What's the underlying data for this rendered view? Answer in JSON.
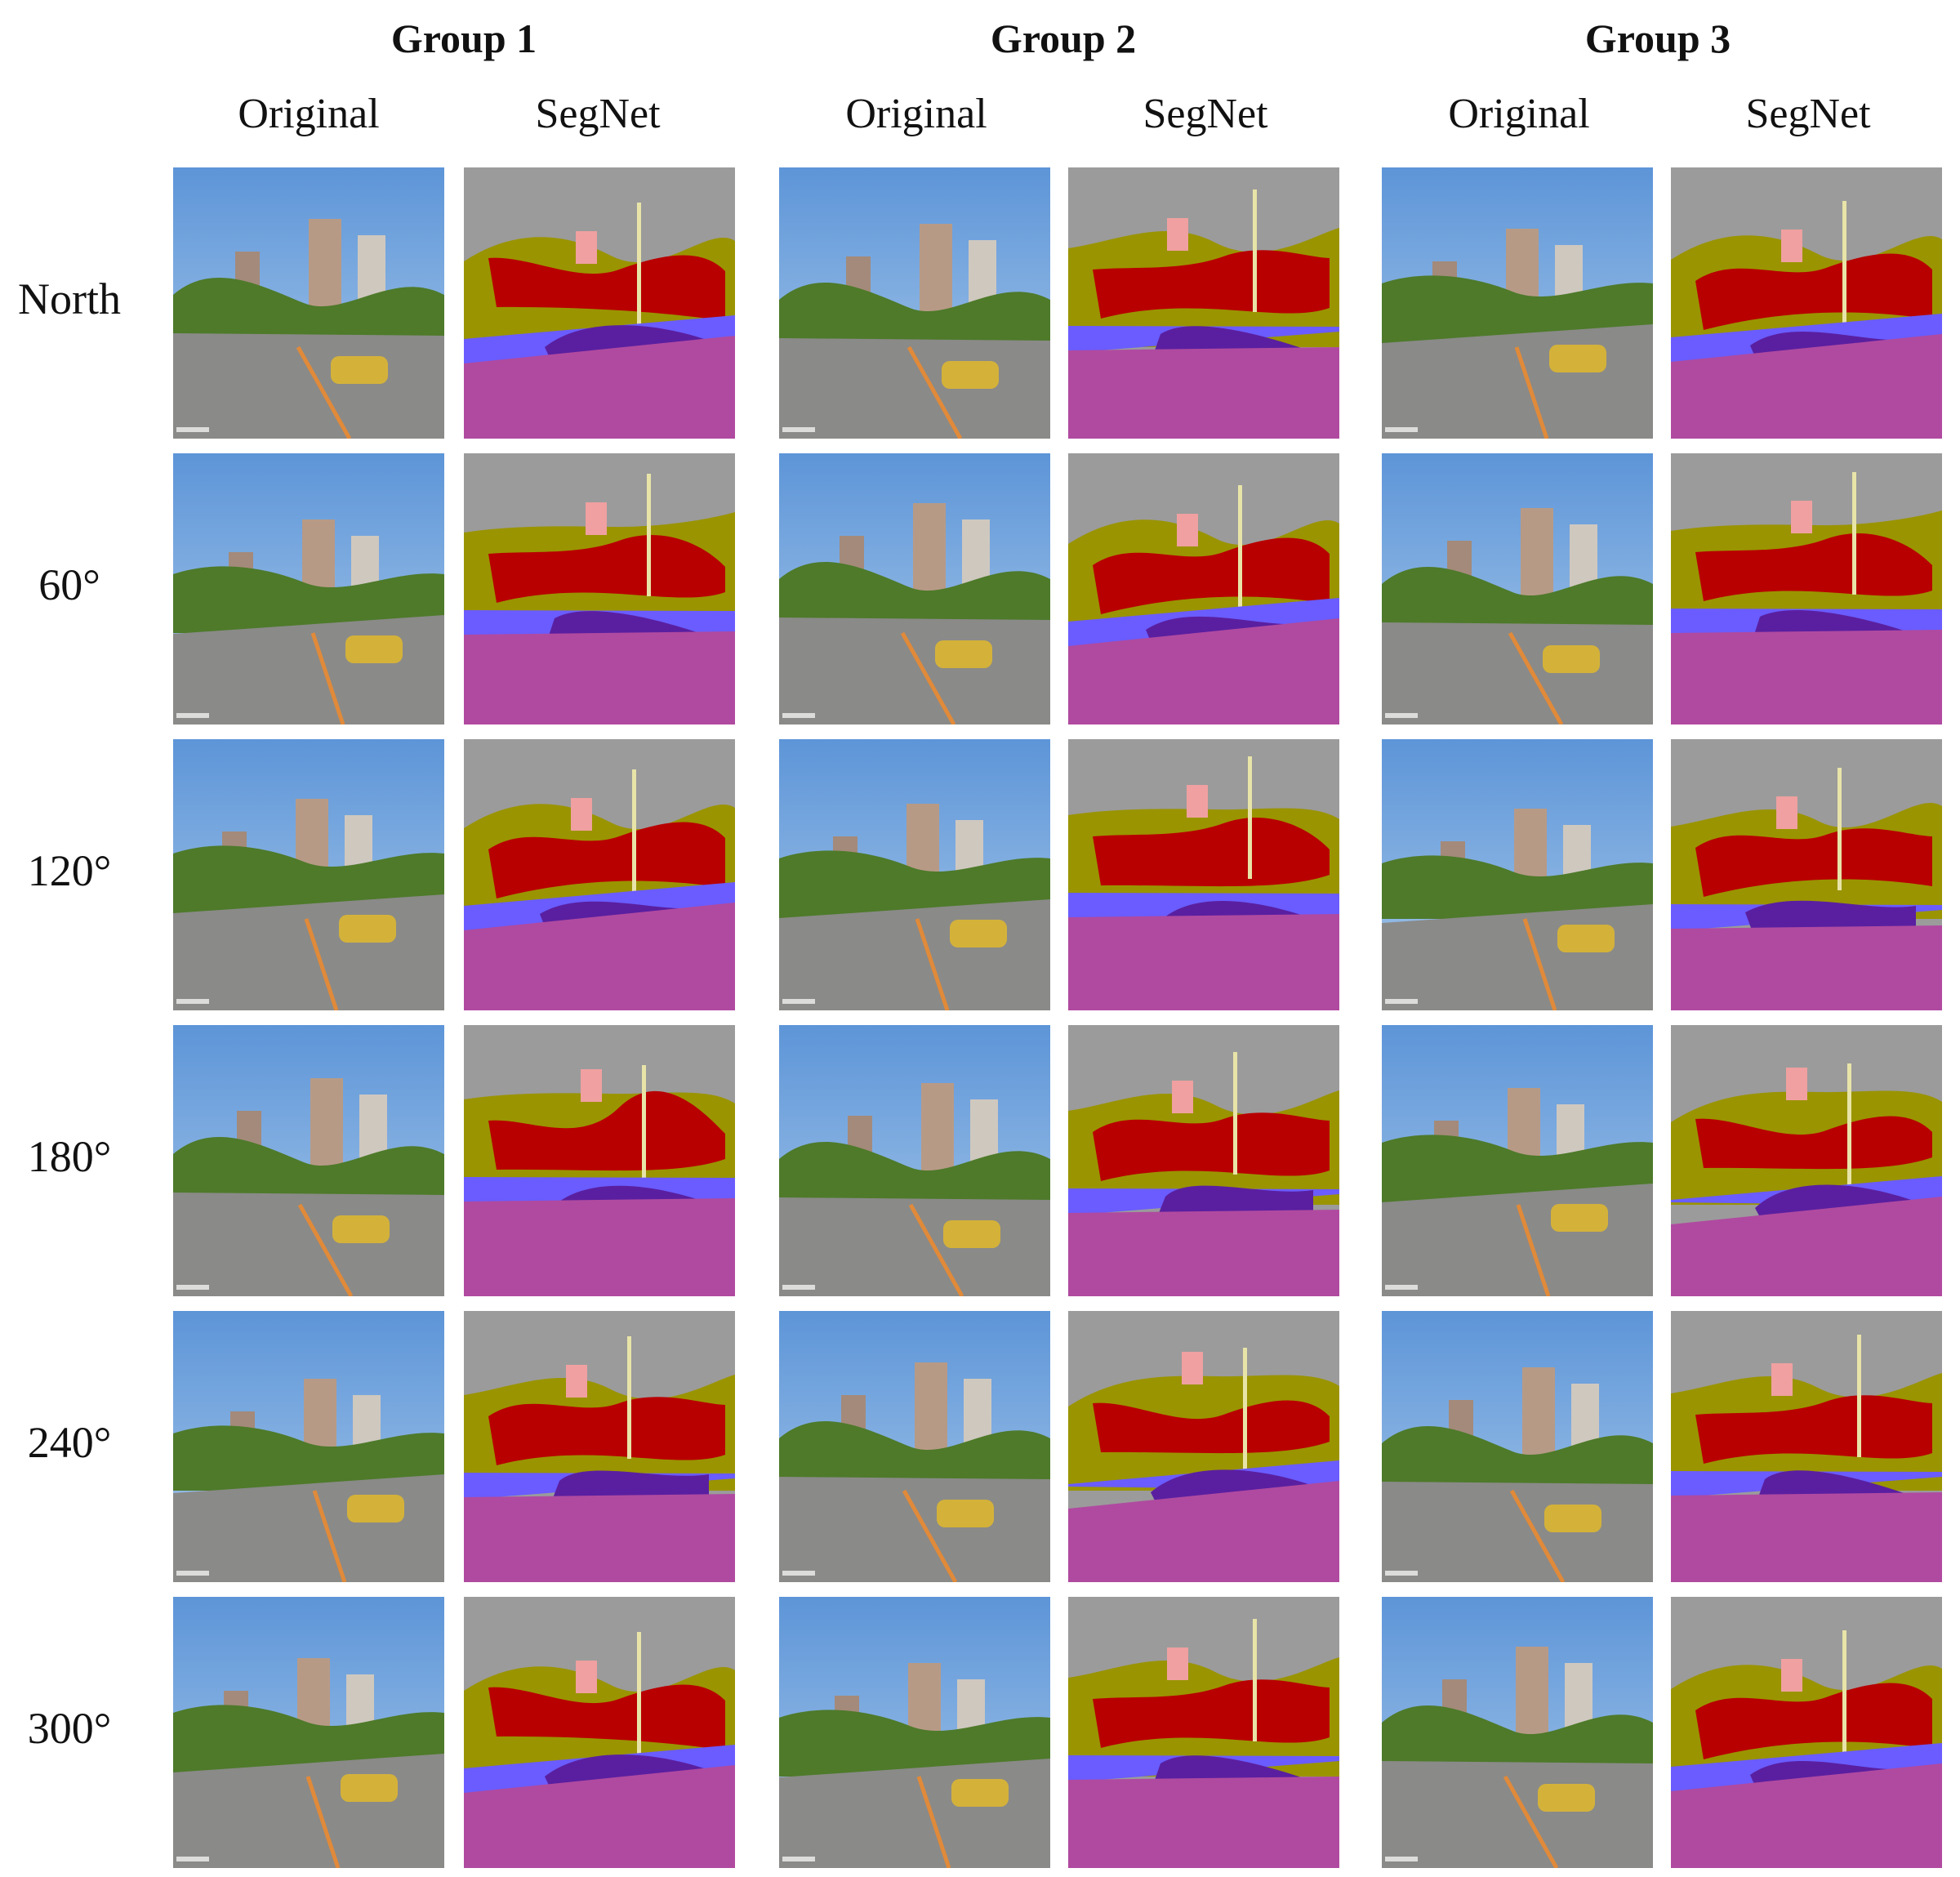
{
  "groups": [
    {
      "title": "Group 1",
      "columns": [
        "Original",
        "SegNet"
      ]
    },
    {
      "title": "Group 2",
      "columns": [
        "Original",
        "SegNet"
      ]
    },
    {
      "title": "Group 3",
      "columns": [
        "Original",
        "SegNet"
      ]
    }
  ],
  "rows": [
    "North",
    "60°",
    "120°",
    "180°",
    "240°",
    "300°"
  ],
  "segmentation_colors": {
    "sky": "#9b9b9b",
    "vegetation": "#9a9400",
    "building": "#b80000",
    "car": "#5a1fa0",
    "road": "#b04aa0",
    "sidewalk": "#6a5cff",
    "pole": "#e8e4a8",
    "fence": "#5a5aa0",
    "pedestrian": "#f0a0a0"
  },
  "photo_colors": {
    "sky": "#a9c9ea",
    "tree": "#4e7a2a",
    "road": "#8a8a88",
    "building": "#b79a86"
  }
}
